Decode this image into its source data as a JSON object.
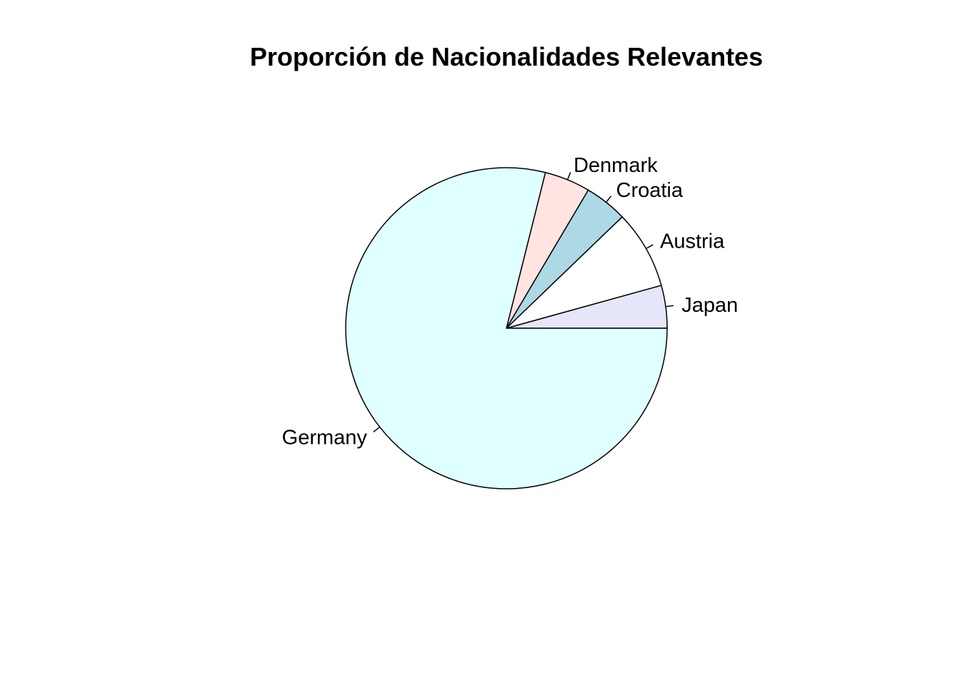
{
  "chart_data": {
    "type": "pie",
    "title": "Proporción de Nacionalidades Relevantes",
    "slices": [
      {
        "label": "Japan",
        "value": 4.3,
        "color": "#E6E6FA"
      },
      {
        "label": "Austria",
        "value": 7.9,
        "color": "#FFFFFF"
      },
      {
        "label": "Croatia",
        "value": 4.3,
        "color": "#ADD8E6"
      },
      {
        "label": "Denmark",
        "value": 4.6,
        "color": "#FFE4E1"
      },
      {
        "label": "Germany",
        "value": 78.9,
        "color": "#E0FFFF"
      }
    ],
    "start": "3 o'clock",
    "direction": "counterclockwise",
    "legend": "none"
  }
}
